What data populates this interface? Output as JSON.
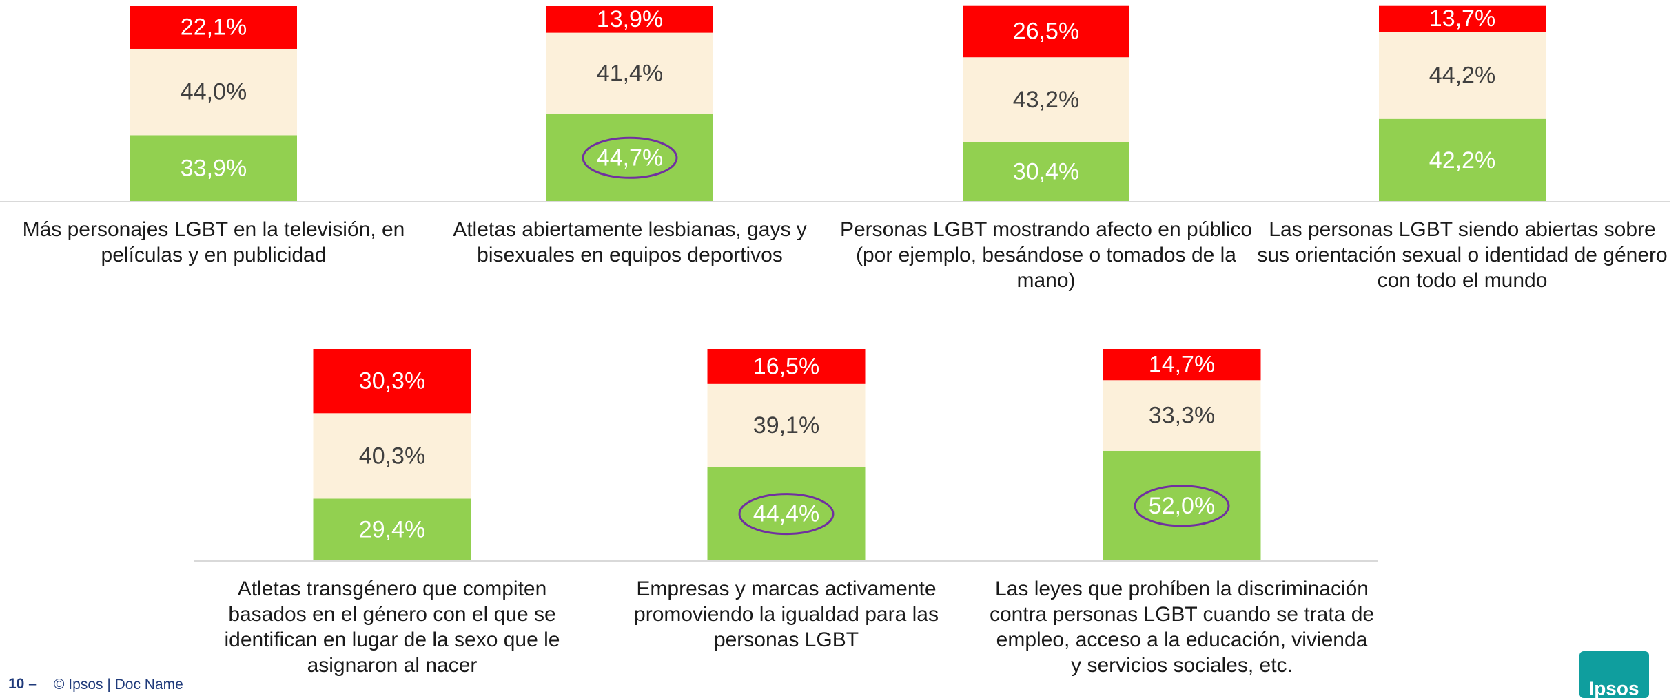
{
  "chart_data": [
    {
      "type": "bar",
      "stacked": true,
      "categories": [
        "Más personajes LGBT en la televisión, en películas y en publicidad",
        "Atletas abiertamente lesbianas, gays y bisexuales en equipos deportivos",
        "Personas LGBT mostrando afecto en público (por ejemplo, besándose o tomados de la mano)",
        "Las personas LGBT siendo abiertas sobre sus orientación sexual o identidad de género con todo el mundo"
      ],
      "series": [
        {
          "color": "#92d050",
          "label_color": "#ffffff",
          "values": [
            33.9,
            44.7,
            30.4,
            42.2
          ],
          "value_labels": [
            "33,9%",
            "44,7%",
            "30,4%",
            "42,2%"
          ]
        },
        {
          "color": "#fcf0da",
          "label_color": "#404040",
          "values": [
            44.0,
            41.4,
            43.2,
            44.2
          ],
          "value_labels": [
            "44,0%",
            "41,4%",
            "43,2%",
            "44,2%"
          ]
        },
        {
          "color": "#ff0000",
          "label_color": "#ffffff",
          "values": [
            22.1,
            13.9,
            26.5,
            13.7
          ],
          "value_labels": [
            "22,1%",
            "13,9%",
            "26,5%",
            "13,7%"
          ]
        }
      ],
      "ylim": [
        0,
        100
      ],
      "highlight": [
        1
      ]
    },
    {
      "type": "bar",
      "stacked": true,
      "categories": [
        "Atletas transgénero que compiten basados en el género con el que se identifican en lugar de la sexo que le asignaron al nacer",
        "Empresas y marcas activamente promoviendo la igualdad para las personas LGBT",
        "Las leyes que prohíben la discriminación contra personas LGBT cuando se trata de empleo, acceso a la educación, vivienda y servicios sociales, etc."
      ],
      "series": [
        {
          "color": "#92d050",
          "label_color": "#ffffff",
          "values": [
            29.4,
            44.4,
            52.0
          ],
          "value_labels": [
            "29,4%",
            "44,4%",
            "52,0%"
          ]
        },
        {
          "color": "#fcf0da",
          "label_color": "#404040",
          "values": [
            40.3,
            39.1,
            33.3
          ],
          "value_labels": [
            "40,3%",
            "39,1%",
            "33,3%"
          ]
        },
        {
          "color": "#ff0000",
          "label_color": "#ffffff",
          "values": [
            30.3,
            16.5,
            14.7
          ],
          "value_labels": [
            "30,3%",
            "16,5%",
            "14,7%"
          ]
        }
      ],
      "ylim": [
        0,
        100
      ],
      "highlight": [
        1,
        2
      ]
    }
  ],
  "footer": {
    "page": "10 –",
    "text": "© Ipsos | Doc Name"
  },
  "logo": "Ipsos"
}
